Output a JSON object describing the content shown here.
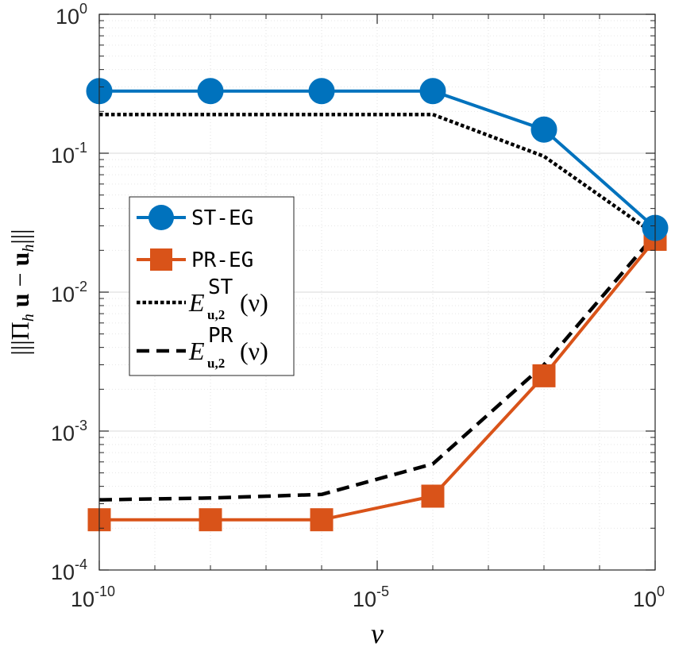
{
  "chart_data": {
    "type": "line",
    "xscale": "log",
    "yscale": "log",
    "x": [
      1e-10,
      1e-08,
      1e-06,
      0.0001,
      0.01,
      1
    ],
    "xlim": [
      1e-10,
      1
    ],
    "ylim": [
      0.0001,
      1
    ],
    "xticks": [
      {
        "value": 1e-10,
        "base": "10",
        "exp": "-10"
      },
      {
        "value": 1e-05,
        "base": "10",
        "exp": "-5"
      },
      {
        "value": 1,
        "base": "10",
        "exp": "0"
      }
    ],
    "yticks": [
      {
        "value": 0.0001,
        "base": "10",
        "exp": "-4"
      },
      {
        "value": 0.001,
        "base": "10",
        "exp": "-3"
      },
      {
        "value": 0.01,
        "base": "10",
        "exp": "-2"
      },
      {
        "value": 0.1,
        "base": "10",
        "exp": "-1"
      },
      {
        "value": 1,
        "base": "10",
        "exp": "0"
      }
    ],
    "xlabel": "ν",
    "ylabel": "|||Π_h u − u_h|||",
    "grid": true,
    "legend_position": "center-left",
    "series": [
      {
        "name": "ST-EG",
        "color": "#0072BD",
        "style": "solid",
        "marker": "circle",
        "values": [
          0.28,
          0.28,
          0.28,
          0.28,
          0.148,
          0.029
        ]
      },
      {
        "name": "PR-EG",
        "color": "#D95319",
        "style": "solid",
        "marker": "square",
        "values": [
          0.00023,
          0.00023,
          0.00023,
          0.00034,
          0.0025,
          0.024
        ]
      },
      {
        "name": "E_{u,2}^{ST}(ν)",
        "color": "#000000",
        "style": "dotted",
        "marker": "none",
        "values": [
          0.19,
          0.19,
          0.19,
          0.19,
          0.095,
          0.026
        ]
      },
      {
        "name": "E_{u,2}^{PR}(ν)",
        "color": "#000000",
        "style": "dashed",
        "marker": "none",
        "values": [
          0.00032,
          0.00033,
          0.00035,
          0.00058,
          0.003,
          0.026
        ]
      }
    ],
    "legend": [
      {
        "label": "ST-EG"
      },
      {
        "label": "PR-EG"
      },
      {
        "main": "E",
        "sup": "ST",
        "sub": "u,2",
        "arg": "(ν)"
      },
      {
        "main": "E",
        "sup": "PR",
        "sub": "u,2",
        "arg": "(ν)"
      }
    ]
  }
}
